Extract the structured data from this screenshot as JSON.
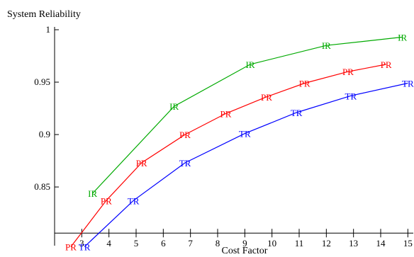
{
  "chart_data": {
    "type": "line",
    "title": "",
    "xlabel": "Cost Factor",
    "ylabel": "System Reliability",
    "xlim": [
      2.0,
      15.2
    ],
    "ylim": [
      0.794,
      1.0
    ],
    "x_axis_crosses_y_at": 0.806,
    "y_axis_crosses_x_at": 2.0,
    "xticks": [
      3,
      4,
      5,
      6,
      7,
      8,
      9,
      10,
      11,
      12,
      13,
      14,
      15
    ],
    "xtick_labels": [
      "3",
      "4",
      "5",
      "6",
      "7",
      "8",
      "9",
      "10",
      "11",
      "12",
      "13",
      "14",
      "15"
    ],
    "unlabeled_xticks": [
      2
    ],
    "yticks": [
      0.85,
      0.9,
      0.95,
      1.0
    ],
    "ytick_labels": [
      "0.85",
      "0.9",
      "0.95",
      "1"
    ],
    "grid": false,
    "legend": "none (series labeled by text markers on the lines)",
    "series": [
      {
        "name": "IR",
        "color": "#00aa00",
        "points": [
          [
            3.4,
            0.844
          ],
          [
            6.4,
            0.927
          ],
          [
            9.2,
            0.967
          ],
          [
            12.0,
            0.985
          ],
          [
            14.8,
            0.993
          ]
        ]
      },
      {
        "name": "PR",
        "color": "#ff0000",
        "points": [
          [
            2.6,
            0.793
          ],
          [
            3.9,
            0.837
          ],
          [
            5.2,
            0.873
          ],
          [
            6.8,
            0.9
          ],
          [
            8.3,
            0.92
          ],
          [
            9.8,
            0.936
          ],
          [
            11.2,
            0.949
          ],
          [
            12.8,
            0.96
          ],
          [
            14.2,
            0.967
          ]
        ]
      },
      {
        "name": "TR",
        "color": "#0000ff",
        "points": [
          [
            3.1,
            0.793
          ],
          [
            4.9,
            0.837
          ],
          [
            6.8,
            0.873
          ],
          [
            9.0,
            0.901
          ],
          [
            10.9,
            0.921
          ],
          [
            12.9,
            0.937
          ],
          [
            15.0,
            0.949
          ]
        ]
      }
    ]
  }
}
